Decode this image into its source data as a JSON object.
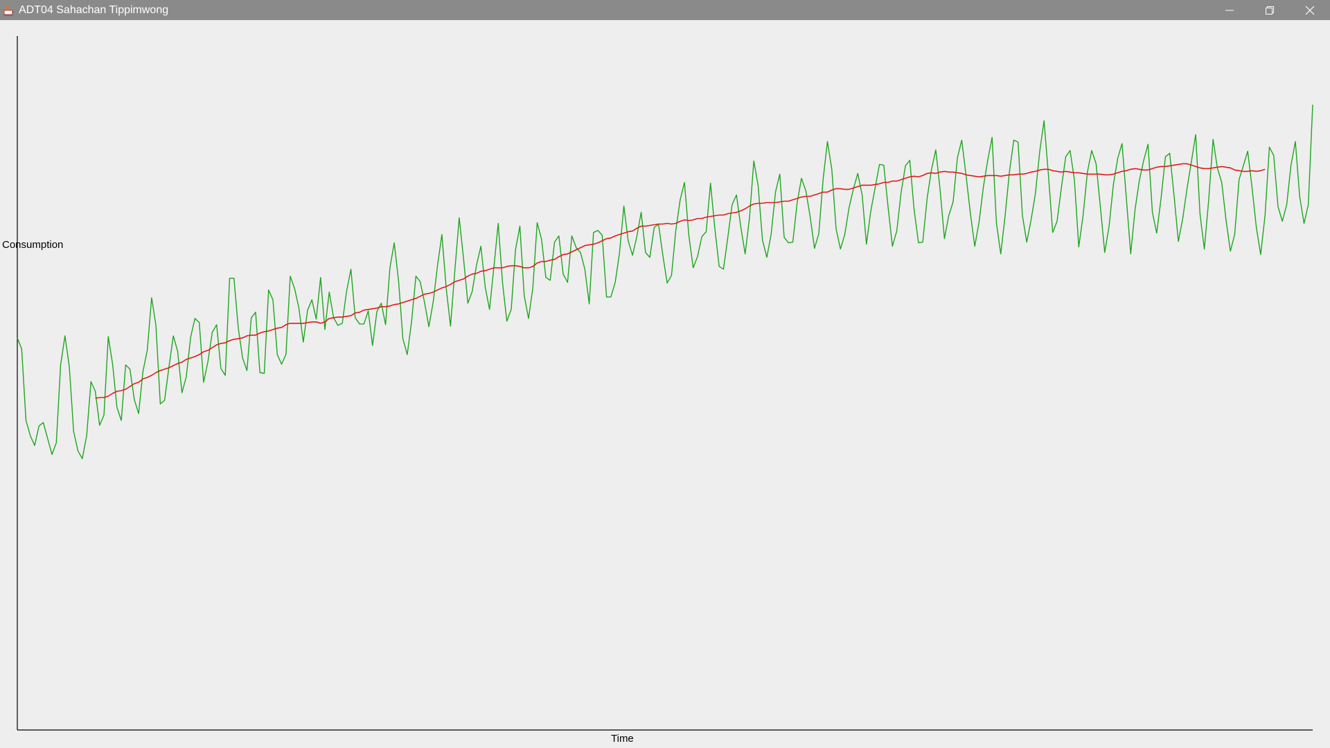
{
  "window": {
    "title": "ADT04 Sahachan Tippimwong",
    "controls": {
      "minimize_icon": "minimize-icon",
      "maximize_icon": "restore-icon",
      "close_icon": "close-icon"
    }
  },
  "chart_data": {
    "type": "line",
    "title": "",
    "xlabel": "Time",
    "ylabel": "Consumption",
    "grid": false,
    "legend": "none",
    "x": {
      "start": 0,
      "end": 299
    },
    "ylim": [
      0,
      100
    ],
    "series": [
      {
        "color": "#1ea51e",
        "values": [
          56.5,
          54.9,
          44.6,
          42.4,
          41.0,
          43.8,
          44.3,
          42.0,
          39.7,
          41.4,
          52.6,
          56.8,
          52.3,
          43.0,
          40.2,
          39.1,
          42.4,
          50.2,
          48.8,
          43.9,
          45.4,
          56.7,
          52.7,
          46.5,
          44.6,
          52.6,
          52.0,
          47.6,
          45.6,
          51.7,
          54.7,
          62.3,
          58.3,
          47.0,
          47.5,
          52.3,
          56.8,
          54.6,
          48.6,
          50.9,
          56.6,
          59.3,
          58.7,
          50.1,
          53.1,
          57.3,
          58.4,
          52.1,
          51.1,
          65.1,
          65.1,
          57.9,
          53.6,
          51.8,
          59.4,
          60.2,
          51.5,
          51.4,
          63.4,
          62.0,
          54.1,
          52.7,
          54.1,
          65.4,
          63.6,
          60.8,
          55.9,
          60.5,
          62.0,
          59.2,
          65.2,
          57.7,
          63.1,
          59.4,
          58.3,
          58.6,
          63.2,
          66.4,
          59.4,
          58.5,
          58.5,
          60.4,
          55.4,
          60.3,
          61.5,
          58.4,
          66.6,
          70.2,
          64.7,
          56.4,
          54.1,
          58.8,
          65.4,
          64.6,
          61.6,
          58.1,
          61.7,
          67.0,
          71.4,
          63.6,
          58.2,
          66.3,
          73.8,
          67.9,
          61.5,
          63.2,
          67.0,
          69.7,
          63.8,
          60.6,
          66.7,
          73.0,
          64.4,
          58.9,
          60.6,
          69.2,
          72.6,
          62.6,
          59.3,
          63.7,
          73.1,
          70.7,
          65.2,
          64.8,
          70.3,
          71.2,
          65.7,
          64.5,
          71.2,
          69.5,
          68.8,
          66.4,
          61.4,
          71.7,
          72.0,
          71.3,
          62.4,
          62.4,
          64.5,
          68.7,
          75.5,
          70.5,
          68.4,
          71.1,
          74.6,
          68.8,
          68.1,
          72.4,
          72.9,
          68.4,
          64.4,
          65.5,
          72.0,
          76.4,
          78.9,
          71.3,
          66.6,
          68.2,
          71.1,
          71.8,
          78.8,
          72.3,
          66.8,
          66.4,
          71.0,
          75.7,
          77.1,
          72.5,
          68.6,
          73.8,
          82.0,
          78.4,
          70.6,
          68.1,
          71.4,
          77.5,
          80.1,
          71.0,
          70.2,
          70.3,
          76.0,
          79.5,
          77.7,
          74.0,
          69.4,
          71.5,
          79.4,
          84.8,
          80.8,
          72.2,
          69.3,
          71.4,
          75.3,
          78.0,
          80.2,
          77.1,
          70.0,
          74.8,
          78.1,
          81.5,
          81.4,
          75.3,
          69.7,
          71.9,
          77.5,
          81.3,
          82.1,
          75.0,
          70.2,
          70.3,
          76.6,
          80.7,
          83.6,
          77.9,
          70.8,
          74.1,
          76.1,
          82.5,
          85.0,
          79.8,
          74.4,
          69.7,
          73.2,
          78.3,
          82.1,
          85.4,
          73.1,
          68.6,
          74.1,
          80.4,
          85.0,
          84.7,
          74.1,
          70.3,
          73.5,
          77.3,
          83.4,
          87.8,
          80.0,
          71.7,
          73.3,
          78.2,
          82.6,
          83.5,
          79.3,
          69.6,
          74.1,
          80.4,
          83.5,
          81.6,
          75.4,
          68.8,
          72.6,
          78.6,
          82.4,
          84.5,
          76.5,
          68.6,
          75.0,
          79.2,
          82.1,
          84.4,
          74.6,
          71.6,
          76.6,
          82.6,
          83.1,
          77.0,
          70.4,
          73.7,
          78.0,
          81.9,
          85.8,
          74.3,
          69.3,
          76.4,
          85.1,
          81.0,
          78.9,
          73.5,
          69.0,
          71.4,
          79.3,
          81.3,
          83.4,
          78.2,
          72.4,
          68.5,
          74.1,
          84.0,
          82.8,
          75.4,
          73.3,
          75.7,
          81.4,
          84.8,
          76.9,
          73.0,
          75.7,
          90.1
        ]
      },
      {
        "color": "#e01a1a",
        "values": [
          null,
          null,
          null,
          null,
          null,
          null,
          null,
          null,
          null,
          null,
          null,
          null,
          null,
          null,
          null,
          null,
          null,
          null,
          47.8,
          47.9,
          47.9,
          48.1,
          48.5,
          48.8,
          48.9,
          49.1,
          49.5,
          49.9,
          50.1,
          50.6,
          50.8,
          51.1,
          51.5,
          51.8,
          52.0,
          52.2,
          52.5,
          52.8,
          53.0,
          53.4,
          53.6,
          53.8,
          54.1,
          54.5,
          54.7,
          55.1,
          55.5,
          55.7,
          55.8,
          56.1,
          56.3,
          56.4,
          56.5,
          56.8,
          56.9,
          56.9,
          57.2,
          57.4,
          57.5,
          57.7,
          57.9,
          58.0,
          58.4,
          58.6,
          58.6,
          58.6,
          58.6,
          58.7,
          58.8,
          58.8,
          58.6,
          58.8,
          59.3,
          59.4,
          59.5,
          59.5,
          59.6,
          59.7,
          60.1,
          60.2,
          60.5,
          60.6,
          60.7,
          60.8,
          61.0,
          61.0,
          61.1,
          61.3,
          61.4,
          61.6,
          61.8,
          62.0,
          62.2,
          62.5,
          62.8,
          62.9,
          63.1,
          63.4,
          63.7,
          63.9,
          64.2,
          64.6,
          64.8,
          65.0,
          65.4,
          65.7,
          65.8,
          66.1,
          66.2,
          66.4,
          66.6,
          66.6,
          66.6,
          66.8,
          66.9,
          66.9,
          66.8,
          66.6,
          66.6,
          66.8,
          67.3,
          67.5,
          67.5,
          67.7,
          67.8,
          68.2,
          68.5,
          68.6,
          68.9,
          69.2,
          69.5,
          69.8,
          69.9,
          70.0,
          70.2,
          70.5,
          70.8,
          70.9,
          71.2,
          71.4,
          71.6,
          71.8,
          71.9,
          72.3,
          72.6,
          72.6,
          72.7,
          72.8,
          72.9,
          72.9,
          73.0,
          72.9,
          73.0,
          73.3,
          73.5,
          73.4,
          73.5,
          73.7,
          73.7,
          73.9,
          74.0,
          74.1,
          74.2,
          74.2,
          74.4,
          74.5,
          74.6,
          74.8,
          75.1,
          75.5,
          75.8,
          75.9,
          75.9,
          76.0,
          76.0,
          76.0,
          76.1,
          76.2,
          76.2,
          76.4,
          76.6,
          76.8,
          76.9,
          76.9,
          77.1,
          77.3,
          77.5,
          77.5,
          77.8,
          78.0,
          78.0,
          77.9,
          77.9,
          78.1,
          78.3,
          78.5,
          78.5,
          78.5,
          78.6,
          78.7,
          78.9,
          78.9,
          79.1,
          79.1,
          79.3,
          79.5,
          79.7,
          79.8,
          79.7,
          79.9,
          80.2,
          80.3,
          80.2,
          80.4,
          80.5,
          80.4,
          80.4,
          80.3,
          80.2,
          80.0,
          79.9,
          79.8,
          79.7,
          79.8,
          79.9,
          79.9,
          79.9,
          79.8,
          79.9,
          80.0,
          80.0,
          80.1,
          80.1,
          80.2,
          80.4,
          80.5,
          80.7,
          80.8,
          80.8,
          80.6,
          80.5,
          80.4,
          80.5,
          80.4,
          80.3,
          80.3,
          80.2,
          80.1,
          80.1,
          80.1,
          80.1,
          80.0,
          80.0,
          80.1,
          80.3,
          80.5,
          80.6,
          80.8,
          80.9,
          80.8,
          80.7,
          80.7,
          80.9,
          81.1,
          81.2,
          81.2,
          81.3,
          81.4,
          81.5,
          81.6,
          81.6,
          81.4,
          81.2,
          81.0,
          80.9,
          80.9,
          81.0,
          81.1,
          81.2,
          81.1,
          81.0,
          80.7,
          80.6,
          80.5,
          80.5,
          80.6,
          80.5,
          80.6,
          80.8
        ]
      }
    ]
  }
}
